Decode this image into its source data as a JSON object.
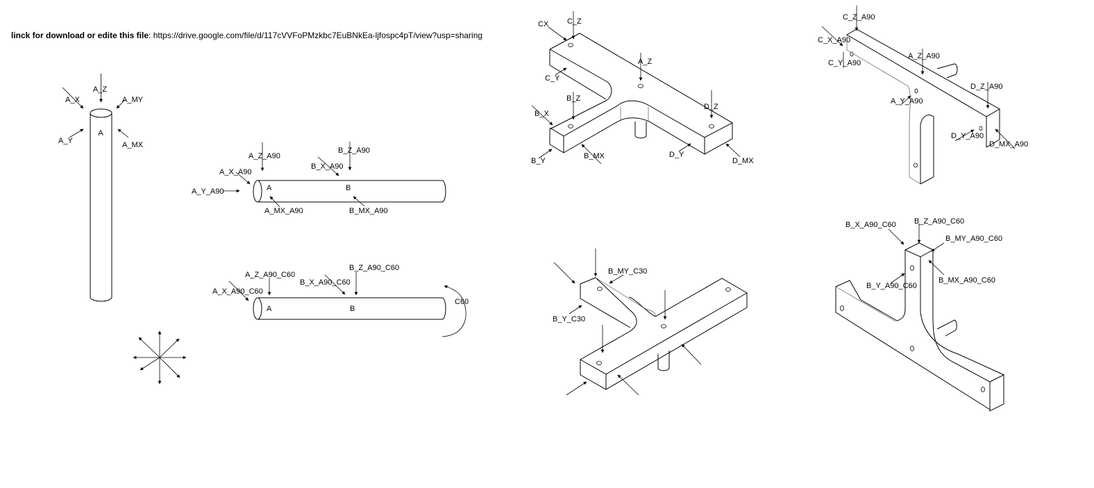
{
  "header": {
    "prefix": "linck for download or edite this file",
    "separator": ":",
    "url": "https://drive.google.com/file/d/117cVVFoPMzkbc7EuBNkEa-ljfospc4pT/view?usp=sharing"
  },
  "fig_vertical_tube": {
    "labels": {
      "a_z": "A_Z",
      "a_x": "A_X",
      "a_my": "A_MY",
      "a_y": "A_Y",
      "a_mx": "A_MX",
      "point_a": "A"
    }
  },
  "fig_tube_a90": {
    "labels": {
      "a_z": "A_Z_A90",
      "a_x": "A_X_A90",
      "a_y": "A_Y_A90",
      "a_mx": "A_MX_A90",
      "b_z": "B_Z_A90",
      "b_x": "B_X_A90",
      "b_mx": "B_MX_A90",
      "point_a": "A",
      "point_b": "B"
    }
  },
  "fig_tube_a90_c60": {
    "labels": {
      "a_z": "A_Z_A90_C60",
      "a_x": "A_X_A90_C60",
      "b_x": "B_X_A90_C60",
      "b_z": "B_Z_A90_C60",
      "rotation": "C60",
      "point_a": "A",
      "point_b": "B"
    }
  },
  "fig_tee_base": {
    "labels": {
      "cx": "CX",
      "c_z": "C_Z",
      "c_y": "C_Y",
      "a_z": "A_Z",
      "b_z": "B_Z",
      "b_x": "B_X",
      "b_y": "B_Y",
      "b_mx": "B_MX",
      "d_z": "D_Z",
      "d_y": "D_Y",
      "d_mx": "D_MX"
    }
  },
  "fig_tee_a90": {
    "labels": {
      "c_z": "C_Z_A90",
      "c_x": "C_X_A90",
      "c_y": "C_Y_A90",
      "a_z": "A_Z_A90",
      "a_y": "A_Y_A90",
      "d_z": "D_Z_A90",
      "d_y": "D_Y_A90",
      "d_mx": "D_MX_A90"
    }
  },
  "fig_tee_c30": {
    "labels": {
      "b_my": "B_MY_C30",
      "b_y": "B_Y_C30"
    }
  },
  "fig_tee_a90_c60": {
    "labels": {
      "b_x": "B_X_A90_C60",
      "b_z": "B_Z_A90_C60",
      "b_my": "B_MY_A90_C60",
      "b_y": "B_Y_A90_C60",
      "b_mx": "B_MX_A90_C60"
    }
  },
  "fig_axes_symbol": {
    "directions": 8
  }
}
